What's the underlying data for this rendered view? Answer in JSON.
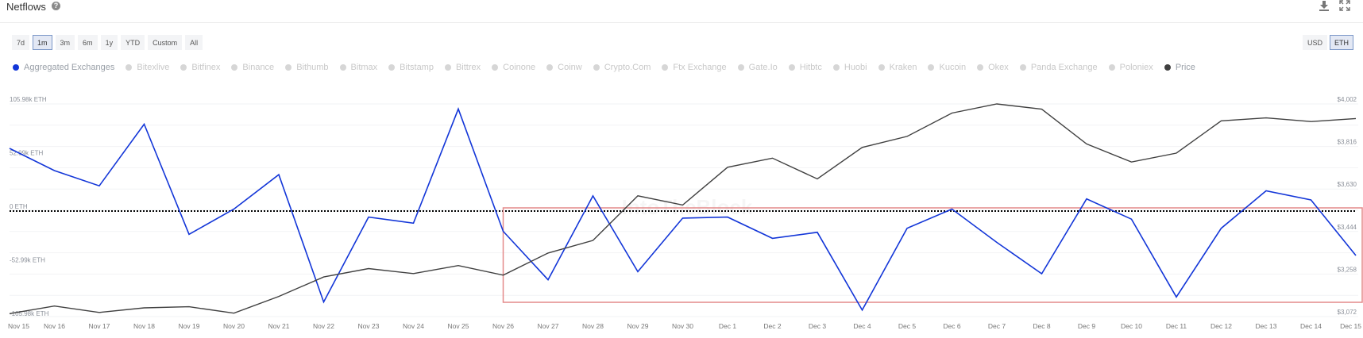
{
  "header": {
    "title": "Netflows",
    "help_icon": "question-circle-icon",
    "download_icon": "download-icon",
    "expand_icon": "expand-icon"
  },
  "ranges": [
    "7d",
    "1m",
    "3m",
    "6m",
    "1y",
    "YTD",
    "Custom",
    "All"
  ],
  "active_range": "1m",
  "units": [
    "USD",
    "ETH"
  ],
  "active_unit": "ETH",
  "legend": [
    {
      "label": "Aggregated Exchanges",
      "color": "#1336d8",
      "active": true
    },
    {
      "label": "Bitexlive",
      "active": false
    },
    {
      "label": "Bitfinex",
      "active": false
    },
    {
      "label": "Binance",
      "active": false
    },
    {
      "label": "Bithumb",
      "active": false
    },
    {
      "label": "Bitmax",
      "active": false
    },
    {
      "label": "Bitstamp",
      "active": false
    },
    {
      "label": "Bittrex",
      "active": false
    },
    {
      "label": "Coinone",
      "active": false
    },
    {
      "label": "Coinw",
      "active": false
    },
    {
      "label": "Crypto.Com",
      "active": false
    },
    {
      "label": "Ftx Exchange",
      "active": false
    },
    {
      "label": "Gate.Io",
      "active": false
    },
    {
      "label": "Hitbtc",
      "active": false
    },
    {
      "label": "Huobi",
      "active": false
    },
    {
      "label": "Kraken",
      "active": false
    },
    {
      "label": "Kucoin",
      "active": false
    },
    {
      "label": "Okex",
      "active": false
    },
    {
      "label": "Panda Exchange",
      "active": false
    },
    {
      "label": "Poloniex",
      "active": false
    },
    {
      "label": "Price",
      "color": "#404040",
      "active": true
    }
  ],
  "watermark": "IntoTheBlock",
  "chart_data": {
    "type": "line",
    "title": "Netflows",
    "categories": [
      "Nov 15",
      "Nov 16",
      "Nov 17",
      "Nov 18",
      "Nov 19",
      "Nov 20",
      "Nov 21",
      "Nov 22",
      "Nov 23",
      "Nov 24",
      "Nov 25",
      "Nov 26",
      "Nov 27",
      "Nov 28",
      "Nov 29",
      "Nov 30",
      "Dec 1",
      "Dec 2",
      "Dec 3",
      "Dec 4",
      "Dec 5",
      "Dec 6",
      "Dec 7",
      "Dec 8",
      "Dec 9",
      "Dec 10",
      "Dec 11",
      "Dec 12",
      "Dec 13",
      "Dec 14",
      "Dec 15"
    ],
    "series": [
      {
        "name": "Aggregated Exchanges",
        "axis": "left",
        "unit": "ETH",
        "color": "#1336d8",
        "values": [
          62000,
          40000,
          25000,
          86000,
          -23000,
          2000,
          36000,
          -90000,
          -6000,
          -12000,
          101000,
          -20000,
          -68000,
          15000,
          -60000,
          -7000,
          -6000,
          -27000,
          -21000,
          -98000,
          -17000,
          2000,
          -31000,
          -62000,
          12000,
          -8000,
          -85000,
          -17000,
          20000,
          11000,
          -44000
        ]
      },
      {
        "name": "Price",
        "axis": "right",
        "unit": "USD",
        "color": "#404040",
        "values": [
          3085,
          3118,
          3090,
          3110,
          3115,
          3087,
          3160,
          3245,
          3282,
          3260,
          3295,
          3253,
          3350,
          3405,
          3600,
          3560,
          3725,
          3765,
          3674,
          3812,
          3860,
          3962,
          4002,
          3979,
          3827,
          3748,
          3787,
          3928,
          3941,
          3925,
          3938
        ]
      }
    ],
    "y_left": {
      "ticks": [
        "105.98k ETH",
        "52.99k ETH",
        "0 ETH",
        "-52.99k ETH",
        "-105.98k ETH"
      ],
      "range": [
        -105980,
        105980
      ]
    },
    "y_right": {
      "ticks": [
        "$4,002",
        "$3,816",
        "$3,630",
        "$3,444",
        "$3,258",
        "$3,072"
      ],
      "range": [
        3072,
        4002
      ]
    },
    "annotation": {
      "type": "rectangle",
      "color": "#e48a8a",
      "from": "Nov 26",
      "to": "Dec 15"
    },
    "grid": true,
    "legend_position": "top"
  }
}
